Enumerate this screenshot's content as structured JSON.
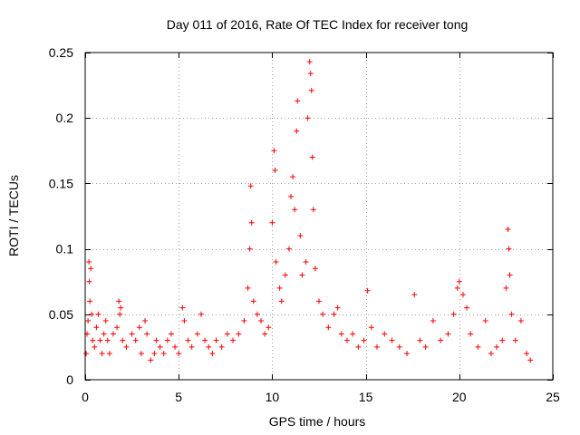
{
  "chart_data": {
    "type": "scatter",
    "title": "Day 011 of 2016, Rate Of TEC Index for receiver tong",
    "xlabel": "GPS time / hours",
    "ylabel": "ROTI / TECUs",
    "xlim": [
      0,
      25
    ],
    "ylim": [
      0,
      0.25
    ],
    "xticks": [
      0,
      5,
      10,
      15,
      20,
      25
    ],
    "xtick_labels": [
      "0",
      "5",
      "10",
      "15",
      "20",
      "25"
    ],
    "yticks": [
      0,
      0.05,
      0.1,
      0.15,
      0.2,
      0.25
    ],
    "ytick_labels": [
      "0",
      "0.05",
      "0.1",
      "0.15",
      "0.2",
      "0.25"
    ],
    "grid": true,
    "marker": "+",
    "color": "#ff0000",
    "series": [
      {
        "name": "ROTI",
        "points": [
          [
            0.05,
            0.02
          ],
          [
            0.1,
            0.035
          ],
          [
            0.15,
            0.045
          ],
          [
            0.2,
            0.09
          ],
          [
            0.22,
            0.075
          ],
          [
            0.25,
            0.06
          ],
          [
            0.3,
            0.085
          ],
          [
            0.35,
            0.05
          ],
          [
            0.4,
            0.03
          ],
          [
            0.5,
            0.025
          ],
          [
            0.6,
            0.04
          ],
          [
            0.7,
            0.05
          ],
          [
            0.8,
            0.03
          ],
          [
            0.9,
            0.02
          ],
          [
            1.0,
            0.035
          ],
          [
            1.1,
            0.045
          ],
          [
            1.2,
            0.03
          ],
          [
            1.3,
            0.02
          ],
          [
            1.5,
            0.035
          ],
          [
            1.7,
            0.04
          ],
          [
            1.8,
            0.06
          ],
          [
            1.85,
            0.05
          ],
          [
            1.9,
            0.055
          ],
          [
            2.0,
            0.03
          ],
          [
            2.2,
            0.025
          ],
          [
            2.5,
            0.035
          ],
          [
            2.7,
            0.03
          ],
          [
            2.9,
            0.04
          ],
          [
            3.0,
            0.02
          ],
          [
            3.2,
            0.045
          ],
          [
            3.3,
            0.035
          ],
          [
            3.5,
            0.015
          ],
          [
            3.7,
            0.02
          ],
          [
            3.8,
            0.03
          ],
          [
            4.0,
            0.025
          ],
          [
            4.2,
            0.02
          ],
          [
            4.4,
            0.03
          ],
          [
            4.6,
            0.035
          ],
          [
            4.8,
            0.025
          ],
          [
            5.0,
            0.02
          ],
          [
            5.2,
            0.055
          ],
          [
            5.3,
            0.045
          ],
          [
            5.5,
            0.03
          ],
          [
            5.7,
            0.025
          ],
          [
            6.0,
            0.035
          ],
          [
            6.2,
            0.05
          ],
          [
            6.4,
            0.03
          ],
          [
            6.6,
            0.025
          ],
          [
            6.8,
            0.02
          ],
          [
            7.0,
            0.03
          ],
          [
            7.3,
            0.025
          ],
          [
            7.6,
            0.035
          ],
          [
            7.9,
            0.03
          ],
          [
            8.2,
            0.035
          ],
          [
            8.5,
            0.045
          ],
          [
            8.7,
            0.07
          ],
          [
            8.8,
            0.1
          ],
          [
            8.85,
            0.148
          ],
          [
            8.9,
            0.12
          ],
          [
            9.0,
            0.06
          ],
          [
            9.2,
            0.05
          ],
          [
            9.4,
            0.045
          ],
          [
            9.6,
            0.035
          ],
          [
            9.8,
            0.04
          ],
          [
            10.0,
            0.12
          ],
          [
            10.1,
            0.175
          ],
          [
            10.15,
            0.16
          ],
          [
            10.2,
            0.09
          ],
          [
            10.4,
            0.07
          ],
          [
            10.5,
            0.06
          ],
          [
            10.7,
            0.08
          ],
          [
            10.9,
            0.1
          ],
          [
            11.0,
            0.14
          ],
          [
            11.1,
            0.155
          ],
          [
            11.2,
            0.13
          ],
          [
            11.3,
            0.19
          ],
          [
            11.35,
            0.213
          ],
          [
            11.5,
            0.11
          ],
          [
            11.6,
            0.08
          ],
          [
            11.8,
            0.09
          ],
          [
            11.9,
            0.2
          ],
          [
            12.0,
            0.243
          ],
          [
            12.05,
            0.234
          ],
          [
            12.1,
            0.221
          ],
          [
            12.15,
            0.17
          ],
          [
            12.2,
            0.13
          ],
          [
            12.3,
            0.085
          ],
          [
            12.5,
            0.06
          ],
          [
            12.7,
            0.05
          ],
          [
            13.0,
            0.04
          ],
          [
            13.3,
            0.05
          ],
          [
            13.5,
            0.055
          ],
          [
            13.7,
            0.035
          ],
          [
            14.0,
            0.03
          ],
          [
            14.3,
            0.035
          ],
          [
            14.6,
            0.025
          ],
          [
            14.9,
            0.03
          ],
          [
            15.1,
            0.068
          ],
          [
            15.3,
            0.04
          ],
          [
            15.6,
            0.025
          ],
          [
            16.0,
            0.035
          ],
          [
            16.4,
            0.03
          ],
          [
            16.8,
            0.025
          ],
          [
            17.2,
            0.02
          ],
          [
            17.6,
            0.065
          ],
          [
            17.9,
            0.03
          ],
          [
            18.2,
            0.025
          ],
          [
            18.6,
            0.045
          ],
          [
            19.0,
            0.03
          ],
          [
            19.4,
            0.035
          ],
          [
            19.7,
            0.05
          ],
          [
            19.9,
            0.07
          ],
          [
            20.0,
            0.075
          ],
          [
            20.2,
            0.065
          ],
          [
            20.4,
            0.055
          ],
          [
            20.6,
            0.035
          ],
          [
            21.0,
            0.025
          ],
          [
            21.4,
            0.045
          ],
          [
            21.7,
            0.02
          ],
          [
            22.0,
            0.025
          ],
          [
            22.3,
            0.03
          ],
          [
            22.5,
            0.07
          ],
          [
            22.6,
            0.115
          ],
          [
            22.65,
            0.1
          ],
          [
            22.7,
            0.08
          ],
          [
            22.8,
            0.05
          ],
          [
            23.0,
            0.03
          ],
          [
            23.3,
            0.045
          ],
          [
            23.6,
            0.02
          ],
          [
            23.8,
            0.015
          ]
        ]
      }
    ]
  }
}
